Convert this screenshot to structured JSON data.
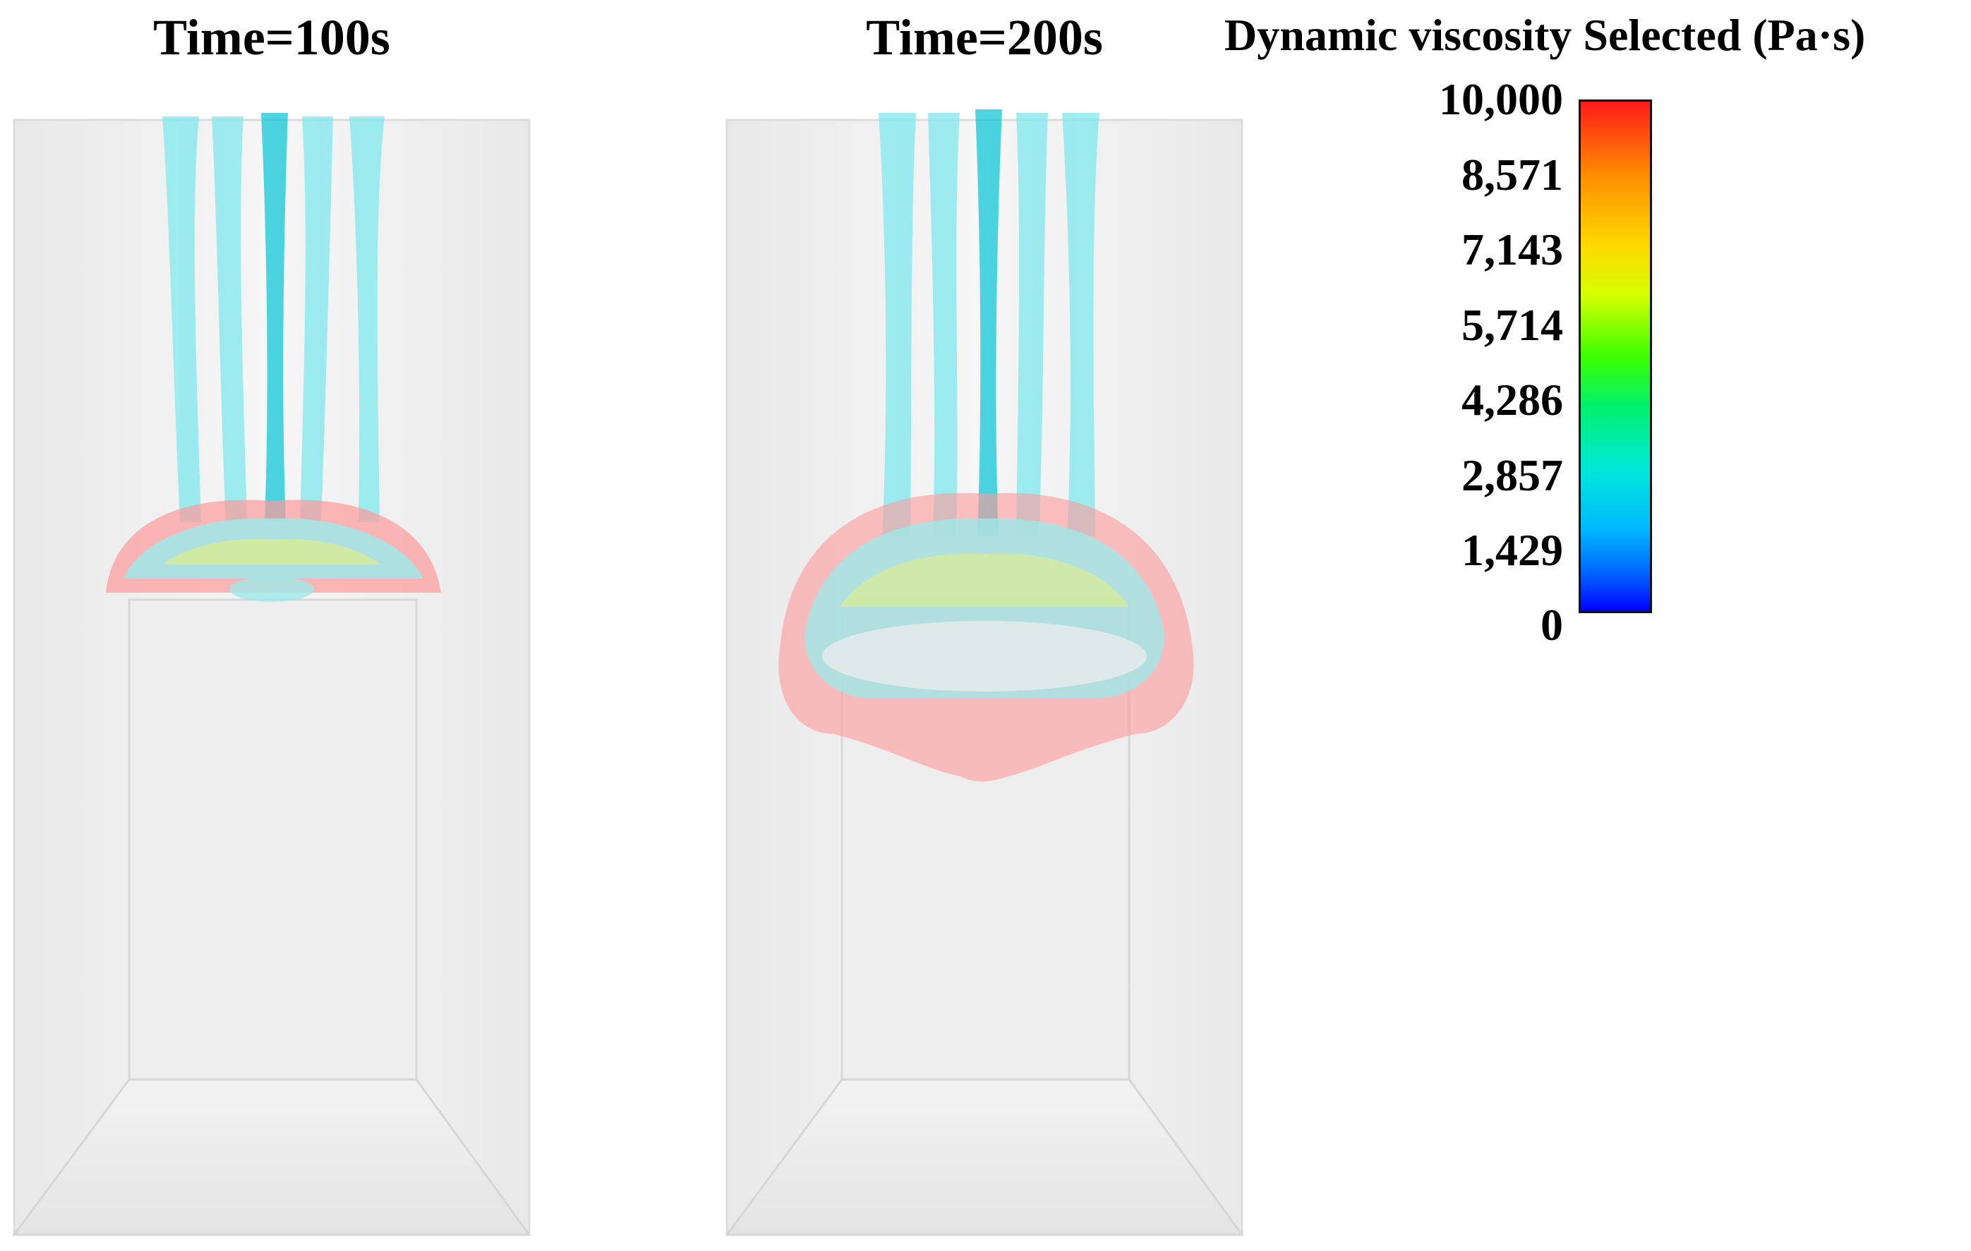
{
  "panels": [
    {
      "title": "Time=100s"
    },
    {
      "title": "Time=200s"
    }
  ],
  "legend": {
    "title": "Dynamic viscosity Selected (Pa·s)",
    "ticks": [
      "10,000",
      "8,571",
      "7,143",
      "5,714",
      "4,286",
      "2,857",
      "1,429",
      "0"
    ],
    "colors": {
      "max": "#ff1a1a",
      "mid": "#3cff00",
      "low": "#00e8d8",
      "min": "#0000ff"
    }
  }
}
